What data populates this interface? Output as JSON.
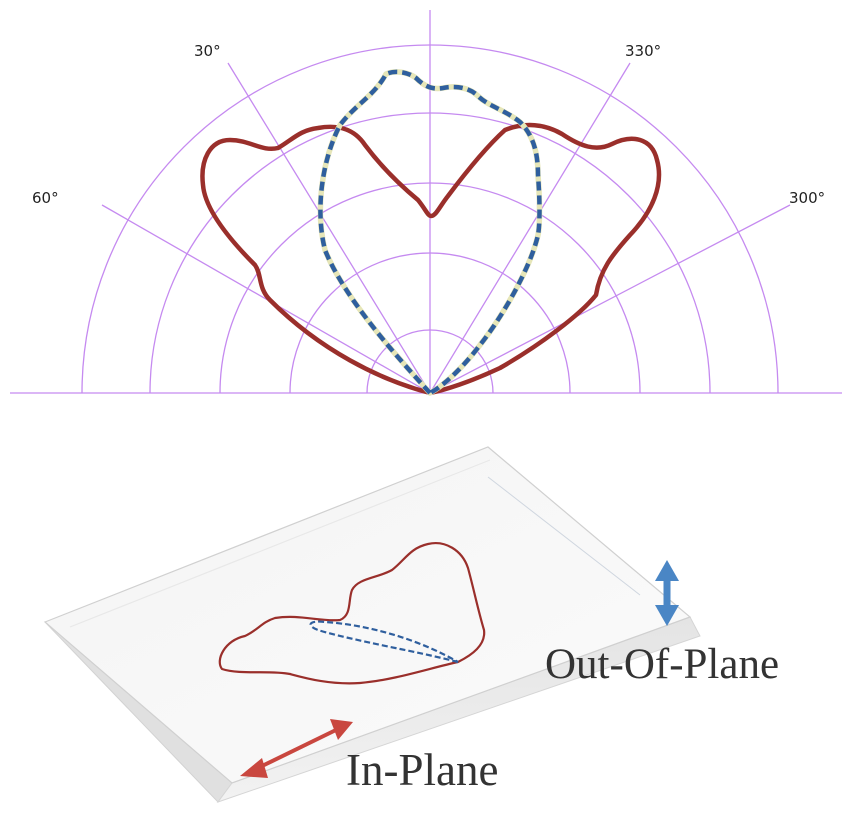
{
  "polar_plot": {
    "angle_labels": {
      "a30": "30°",
      "a60": "60°",
      "a330": "330°",
      "a300": "300°"
    },
    "colors": {
      "grid": "#c58af0",
      "in_plane": "#9a2f2b",
      "out_of_plane_dash": "#2f5f9e",
      "out_of_plane_under": "#e6e6b8"
    }
  },
  "device_diagram": {
    "out_of_plane_label": "Out-Of-Plane",
    "in_plane_label": "In-Plane",
    "colors": {
      "out_of_plane_arrow": "#4a86c5",
      "in_plane_arrow": "#c9473f"
    }
  }
}
